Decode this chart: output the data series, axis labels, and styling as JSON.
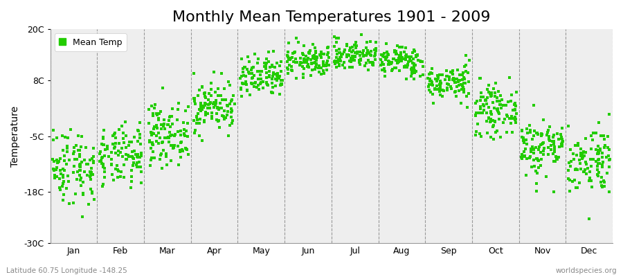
{
  "title": "Monthly Mean Temperatures 1901 - 2009",
  "ylabel": "Temperature",
  "subtitle_left": "Latitude 60.75 Longitude -148.25",
  "subtitle_right": "worldspecies.org",
  "legend_label": "Mean Temp",
  "dot_color": "#22cc00",
  "background_color": "#eeeeee",
  "figure_color": "#ffffff",
  "ylim": [
    -30,
    20
  ],
  "yticks": [
    -30,
    -18,
    -5,
    8,
    20
  ],
  "ytick_labels": [
    "-30C",
    "-18C",
    "-5C",
    "8C",
    "20C"
  ],
  "months": [
    "Jan",
    "Feb",
    "Mar",
    "Apr",
    "May",
    "Jun",
    "Jul",
    "Aug",
    "Sep",
    "Oct",
    "Nov",
    "Dec"
  ],
  "month_means": [
    -12.0,
    -10.0,
    -4.5,
    2.0,
    8.5,
    12.5,
    14.0,
    12.5,
    7.5,
    1.0,
    -7.5,
    -10.5
  ],
  "month_stds": [
    4.5,
    3.5,
    3.5,
    3.0,
    2.5,
    1.8,
    1.8,
    1.8,
    2.0,
    2.8,
    3.5,
    4.0
  ],
  "n_points": 109,
  "seed": 42,
  "marker_size": 10,
  "title_fontsize": 16,
  "axis_fontsize": 10,
  "tick_fontsize": 9
}
